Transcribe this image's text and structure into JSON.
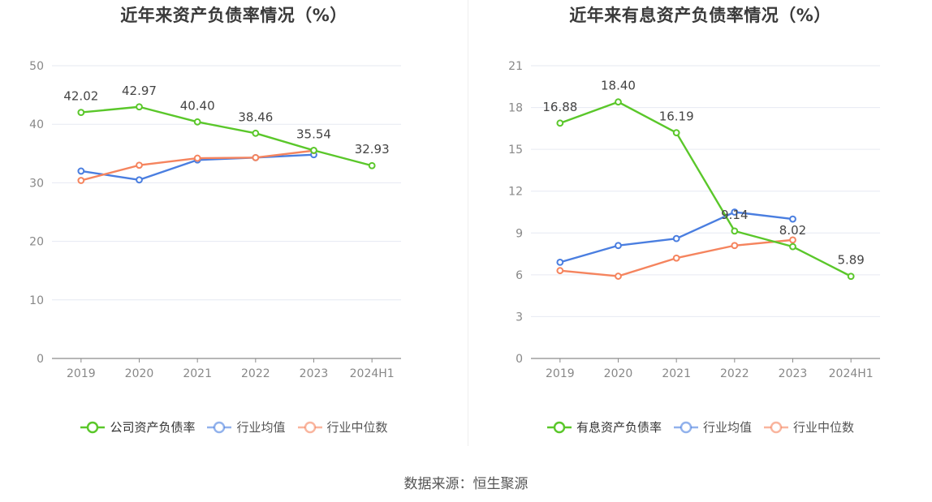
{
  "chart_data": [
    {
      "type": "line",
      "title": "近年来资产负债率情况（%）",
      "xlabel": "",
      "ylabel": "",
      "categories": [
        "2019",
        "2020",
        "2021",
        "2022",
        "2023",
        "2024H1"
      ],
      "ylim": [
        0,
        50
      ],
      "yticks": [
        0,
        10,
        20,
        30,
        40,
        50
      ],
      "grid": true,
      "legend_position": "bottom",
      "series": [
        {
          "name": "公司资产负债率",
          "color": "#5ac72a",
          "show_labels": true,
          "labels": [
            "42.02",
            "42.97",
            "40.40",
            "38.46",
            "35.54",
            "32.93"
          ],
          "values": [
            42.02,
            42.97,
            40.4,
            38.46,
            35.54,
            32.93
          ]
        },
        {
          "name": "行业均值",
          "color": "#4a7ee0",
          "show_labels": false,
          "values": [
            32.0,
            30.5,
            33.9,
            34.3,
            34.8,
            null
          ]
        },
        {
          "name": "行业中位数",
          "color": "#f5845e",
          "show_labels": false,
          "values": [
            30.4,
            33.0,
            34.2,
            34.3,
            35.5,
            null
          ]
        }
      ]
    },
    {
      "type": "line",
      "title": "近年来有息资产负债率情况（%）",
      "xlabel": "",
      "ylabel": "",
      "categories": [
        "2019",
        "2020",
        "2021",
        "2022",
        "2023",
        "2024H1"
      ],
      "ylim": [
        0,
        21
      ],
      "yticks": [
        0,
        3,
        6,
        9,
        12,
        15,
        18,
        21
      ],
      "grid": true,
      "legend_position": "bottom",
      "series": [
        {
          "name": "有息资产负债率",
          "color": "#5ac72a",
          "show_labels": true,
          "labels": [
            "16.88",
            "18.40",
            "16.19",
            "9.14",
            "8.02",
            "5.89"
          ],
          "values": [
            16.88,
            18.4,
            16.19,
            9.14,
            8.02,
            5.89
          ]
        },
        {
          "name": "行业均值",
          "color": "#4a7ee0",
          "show_labels": false,
          "values": [
            6.9,
            8.1,
            8.6,
            10.5,
            10.0,
            null
          ]
        },
        {
          "name": "行业中位数",
          "color": "#f5845e",
          "show_labels": false,
          "values": [
            6.3,
            5.9,
            7.2,
            8.1,
            8.5,
            null
          ]
        }
      ]
    }
  ],
  "source": "数据来源：恒生聚源"
}
